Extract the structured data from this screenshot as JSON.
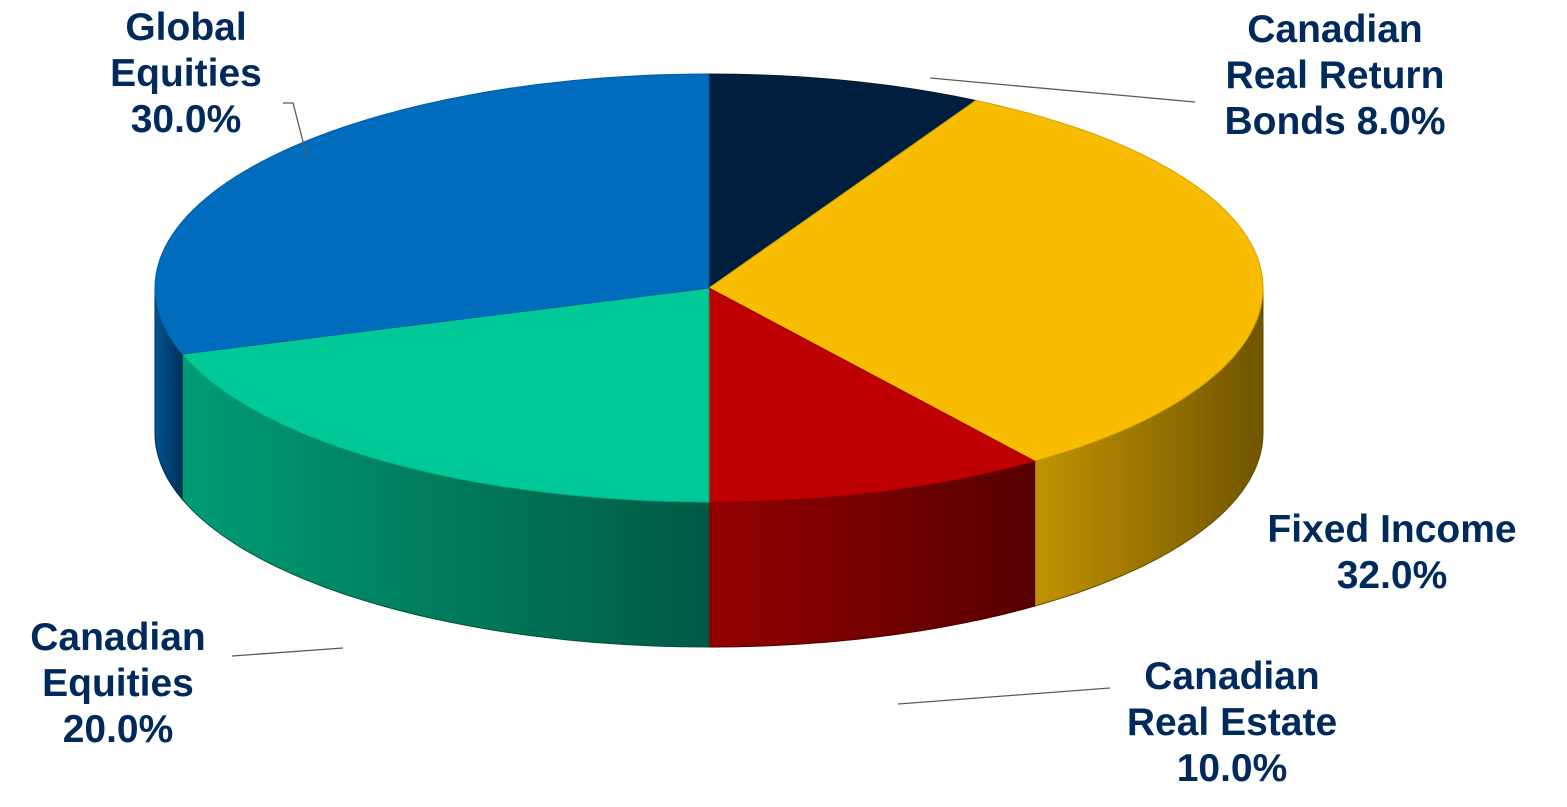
{
  "chart_data": {
    "type": "pie",
    "style": "3d",
    "title": "",
    "unit": "%",
    "slices": [
      {
        "name": "Canadian Real Return Bonds",
        "value": 8.0,
        "color": "#001F3F",
        "label_lines": [
          "Canadian",
          "Real Return",
          "Bonds 8.0%"
        ]
      },
      {
        "name": "Fixed Income",
        "value": 32.0,
        "color": "#F8BC00",
        "label_lines": [
          "Fixed Income",
          "32.0%"
        ]
      },
      {
        "name": "Canadian Real Estate",
        "value": 10.0,
        "color": "#BE0000",
        "label_lines": [
          "Canadian",
          "Real Estate",
          "10.0%"
        ]
      },
      {
        "name": "Canadian Equities",
        "value": 20.0,
        "color": "#00C896",
        "label_lines": [
          "Canadian",
          "Equities",
          "20.0%"
        ]
      },
      {
        "name": "Global Equities",
        "value": 30.0,
        "color": "#006CBE",
        "label_lines": [
          "Global",
          "Equities",
          "30.0%"
        ]
      }
    ],
    "label_color": "#002A5C",
    "legend": "none"
  }
}
